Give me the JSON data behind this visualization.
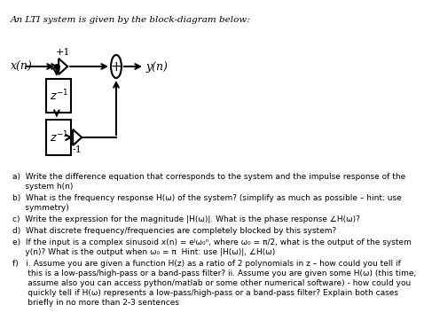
{
  "title": "An LTI system is given by the block-diagram below:",
  "title_fontsize": 7.5,
  "bg_color": "#ffffff",
  "diagram": {
    "x_label": "x(n)",
    "y_label": "y(n)",
    "plus1_label": "+1",
    "minus1_label": "-1"
  },
  "questions": [
    "a)  Write the difference equation that corresponds to the system and the impulse response of the\n     system h(n)",
    "b)  What is the frequency response H(ω) of the system? (simplify as much as possible – hint: use\n     symmetry)",
    "c)  Write the expression for the magnitude |H(ω)|. What is the phase response ∠H(ω)?",
    "d)  What discrete frequency/frequencies are completely blocked by this system?",
    "e)  If the input is a complex sinusoid x(n) = eʲω₀ⁿ, where ω₀ = π/2, what is the output of the system\n     y(n)? What is the output when ω₀ = π  Hint: use |H(ω)|, ∠H(ω)",
    "f)   i. Assume you are given a function H(z) as a ratio of 2 polynomials in z – how could you tell if\n      this is a low-pass/high-pass or a band-pass filter? ii. Assume you are given some H(ω) (this time,\n      assume also you can access python/matlab or some other numerical software) - how could you\n      quickly tell if H(ω) represents a low-pass/high-pass or a band-pass filter? Explain both cases\n      briefly in no more than 2-3 sentences"
  ],
  "question_fontsize": 6.5
}
